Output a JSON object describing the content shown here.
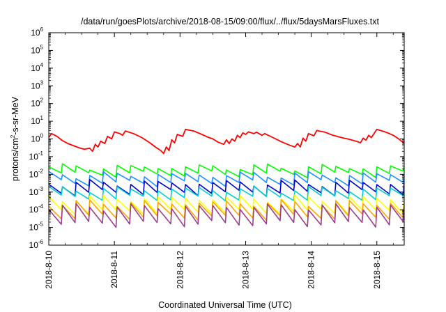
{
  "chart_data": {
    "type": "line",
    "title": "/data/run/goesPlots/archive/2018-08-15/09:00/flux/../flux/5daysMarsFluxes.txt",
    "xlabel": "Coordinated Universal Time (UTC)",
    "ylabel": {
      "prefix": "protons/cm",
      "sup": "2",
      "suffix": "-s-sr-MeV"
    },
    "y_scale": "log",
    "ylim": [
      1e-06,
      1000000.0
    ],
    "y_ticks": [
      {
        "base": "10",
        "exp": "-6"
      },
      {
        "base": "10",
        "exp": "-5"
      },
      {
        "base": "10",
        "exp": "-4"
      },
      {
        "base": "10",
        "exp": "-3"
      },
      {
        "base": "10",
        "exp": "-2"
      },
      {
        "base": "10",
        "exp": "-1"
      },
      {
        "base": "10",
        "exp": "0"
      },
      {
        "base": "10",
        "exp": "1"
      },
      {
        "base": "10",
        "exp": "2"
      },
      {
        "base": "10",
        "exp": "3"
      },
      {
        "base": "10",
        "exp": "4"
      },
      {
        "base": "10",
        "exp": "5"
      },
      {
        "base": "10",
        "exp": "6"
      }
    ],
    "xlim": [
      "2018-08-10 00:00",
      "2018-08-15 10:00"
    ],
    "x_ticks": [
      "2018-8-10",
      "2018-8-11",
      "2018-8-12",
      "2018-8-13",
      "2018-8-14",
      "2018-8-15"
    ],
    "grid": false,
    "series": [
      {
        "color": "#ff0000",
        "width": 1.8,
        "points": [
          [
            "2018-08-10 00:00",
            1.2
          ],
          [
            "2018-08-10 01:00",
            2.0
          ],
          [
            "2018-08-10 03:00",
            1.4
          ],
          [
            "2018-08-10 05:00",
            0.8
          ],
          [
            "2018-08-10 07:00",
            0.55
          ],
          [
            "2018-08-10 09:00",
            0.42
          ],
          [
            "2018-08-10 11:00",
            0.32
          ],
          [
            "2018-08-10 13:00",
            0.26
          ],
          [
            "2018-08-10 15:00",
            0.3
          ],
          [
            "2018-08-10 16:00",
            0.2
          ],
          [
            "2018-08-10 17:00",
            0.5
          ],
          [
            "2018-08-10 18:00",
            0.35
          ],
          [
            "2018-08-10 19:00",
            0.75
          ],
          [
            "2018-08-10 20:30",
            0.55
          ],
          [
            "2018-08-10 21:30",
            1.4
          ],
          [
            "2018-08-10 23:00",
            1.0
          ],
          [
            "2018-08-11 00:00",
            2.5
          ],
          [
            "2018-08-11 02:00",
            2.0
          ],
          [
            "2018-08-11 03:00",
            1.6
          ],
          [
            "2018-08-11 04:00",
            2.8
          ],
          [
            "2018-08-11 07:00",
            2.0
          ],
          [
            "2018-08-11 10:00",
            1.2
          ],
          [
            "2018-08-11 13:00",
            0.6
          ],
          [
            "2018-08-11 15:00",
            0.35
          ],
          [
            "2018-08-11 17:00",
            0.22
          ],
          [
            "2018-08-11 18:00",
            0.15
          ],
          [
            "2018-08-11 19:00",
            0.35
          ],
          [
            "2018-08-11 20:00",
            0.22
          ],
          [
            "2018-08-11 21:00",
            0.9
          ],
          [
            "2018-08-11 22:00",
            0.6
          ],
          [
            "2018-08-11 23:00",
            1.8
          ],
          [
            "2018-08-12 01:00",
            1.4
          ],
          [
            "2018-08-12 02:00",
            3.5
          ],
          [
            "2018-08-12 05:00",
            2.8
          ],
          [
            "2018-08-12 08:00",
            1.8
          ],
          [
            "2018-08-12 10:00",
            1.3
          ],
          [
            "2018-08-12 12:00",
            1.0
          ],
          [
            "2018-08-12 14:00",
            0.65
          ],
          [
            "2018-08-12 16:00",
            0.5
          ],
          [
            "2018-08-12 17:00",
            0.9
          ],
          [
            "2018-08-12 18:00",
            0.55
          ],
          [
            "2018-08-12 19:00",
            1.0
          ],
          [
            "2018-08-12 20:00",
            0.75
          ],
          [
            "2018-08-12 21:00",
            1.6
          ],
          [
            "2018-08-12 22:00",
            1.2
          ],
          [
            "2018-08-12 23:00",
            2.2
          ],
          [
            "2018-08-13 00:00",
            1.8
          ],
          [
            "2018-08-13 01:00",
            2.5
          ],
          [
            "2018-08-13 03:00",
            2.0
          ],
          [
            "2018-08-13 04:00",
            2.4
          ],
          [
            "2018-08-13 06:00",
            1.6
          ],
          [
            "2018-08-13 07:00",
            2.0
          ],
          [
            "2018-08-13 10:00",
            1.2
          ],
          [
            "2018-08-13 13:00",
            0.7
          ],
          [
            "2018-08-13 16:00",
            0.45
          ],
          [
            "2018-08-13 18:00",
            0.35
          ],
          [
            "2018-08-13 19:00",
            0.55
          ],
          [
            "2018-08-13 20:00",
            0.35
          ],
          [
            "2018-08-13 21:00",
            1.1
          ],
          [
            "2018-08-13 22:00",
            0.75
          ],
          [
            "2018-08-13 23:00",
            2.0
          ],
          [
            "2018-08-14 01:00",
            1.5
          ],
          [
            "2018-08-14 02:00",
            3.0
          ],
          [
            "2018-08-14 05:00",
            2.4
          ],
          [
            "2018-08-14 08:00",
            1.6
          ],
          [
            "2018-08-14 11:00",
            1.2
          ],
          [
            "2018-08-14 14:00",
            0.95
          ],
          [
            "2018-08-14 17:00",
            0.7
          ],
          [
            "2018-08-14 18:00",
            0.6
          ],
          [
            "2018-08-14 19:00",
            1.1
          ],
          [
            "2018-08-14 20:00",
            0.85
          ],
          [
            "2018-08-14 21:00",
            1.6
          ],
          [
            "2018-08-14 22:00",
            1.2
          ],
          [
            "2018-08-15 00:00",
            3.5
          ],
          [
            "2018-08-15 02:00",
            2.8
          ],
          [
            "2018-08-15 04:00",
            2.2
          ],
          [
            "2018-08-15 06:00",
            1.6
          ],
          [
            "2018-08-15 08:00",
            1.0
          ],
          [
            "2018-08-15 10:00",
            0.55
          ]
        ]
      },
      {
        "color": "#00ff00",
        "width": 1.6,
        "base": 0.016,
        "amp": 2.2,
        "phase": 0
      },
      {
        "color": "#1e90ff",
        "width": 1.6,
        "base": 0.005,
        "amp": 2.6,
        "phase": 0.3
      },
      {
        "color": "#0000cd",
        "width": 1.6,
        "base": 0.0014,
        "amp": 3.2,
        "phase": 0.6
      },
      {
        "color": "#00ced1",
        "width": 1.6,
        "base": 0.0007,
        "amp": 2.8,
        "phase": 0.15
      },
      {
        "color": "#ffff00",
        "width": 1.6,
        "base": 0.00012,
        "amp": 5.0,
        "phase": 0.45
      },
      {
        "color": "#ffa500",
        "width": 1.6,
        "base": 6e-05,
        "amp": 5.5,
        "phase": 0.7
      },
      {
        "color": "#9b3e8c",
        "width": 1.6,
        "base": 2.5e-05,
        "amp": 8.0,
        "phase": 0.9
      }
    ]
  }
}
